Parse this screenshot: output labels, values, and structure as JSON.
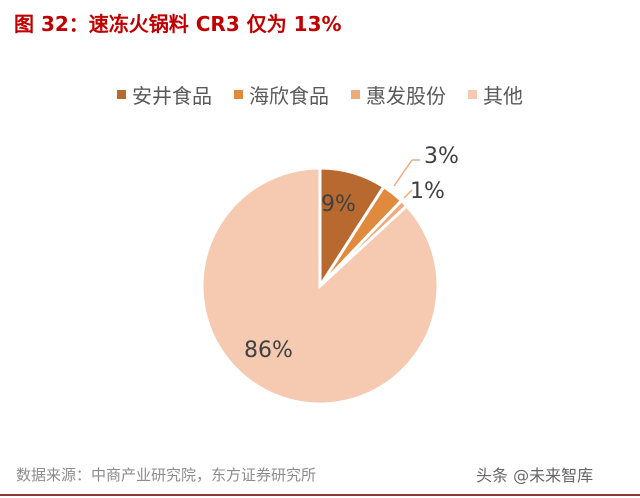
{
  "title": "图 32：速冻火锅料 CR3 仅为 13%",
  "chart_data": {
    "type": "pie",
    "title": "图 32：速冻火锅料 CR3 仅为 13%",
    "categories": [
      "安井食品",
      "海欣食品",
      "惠发股份",
      "其他"
    ],
    "values": [
      9,
      3,
      1,
      86
    ],
    "labels": [
      "9%",
      "3%",
      "1%",
      "86%"
    ],
    "colors": [
      "#B8692F",
      "#E08A3E",
      "#F0AA7C",
      "#F6C9B1"
    ],
    "start_angle": "12 o'clock",
    "direction": "clockwise",
    "legend_position": "top"
  },
  "source": "数据来源：中商产业研究院，东方证券研究所",
  "watermark": "头条 @未来智库"
}
